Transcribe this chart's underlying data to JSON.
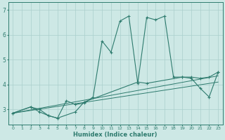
{
  "xlabel": "Humidex (Indice chaleur)",
  "bg_color": "#cde8e5",
  "line_color": "#2e7b6e",
  "grid_color": "#aacfcc",
  "xlim": [
    -0.5,
    23.5
  ],
  "ylim": [
    2.4,
    7.3
  ],
  "xticks": [
    0,
    1,
    2,
    3,
    4,
    5,
    6,
    7,
    8,
    9,
    10,
    11,
    12,
    13,
    14,
    15,
    16,
    17,
    18,
    19,
    20,
    21,
    22,
    23
  ],
  "yticks": [
    3,
    4,
    5,
    6,
    7
  ],
  "series": [
    [
      [
        0,
        2.85
      ],
      [
        2,
        3.1
      ],
      [
        3,
        3.0
      ],
      [
        4,
        2.75
      ],
      [
        5,
        2.65
      ],
      [
        6,
        3.35
      ],
      [
        7,
        3.2
      ],
      [
        8,
        3.25
      ],
      [
        9,
        3.5
      ],
      [
        10,
        5.75
      ],
      [
        11,
        5.3
      ],
      [
        12,
        6.55
      ],
      [
        13,
        6.75
      ],
      [
        14,
        4.05
      ],
      [
        15,
        6.7
      ],
      [
        16,
        6.6
      ],
      [
        17,
        6.75
      ],
      [
        18,
        4.3
      ],
      [
        19,
        4.3
      ],
      [
        20,
        4.25
      ],
      [
        21,
        3.85
      ],
      [
        22,
        3.5
      ],
      [
        23,
        4.5
      ]
    ],
    [
      [
        0,
        2.85
      ],
      [
        2,
        3.1
      ],
      [
        3,
        2.9
      ],
      [
        4,
        2.75
      ],
      [
        5,
        2.65
      ],
      [
        7,
        2.9
      ],
      [
        8,
        3.3
      ],
      [
        14,
        4.1
      ],
      [
        15,
        4.05
      ],
      [
        19,
        4.3
      ],
      [
        20,
        4.3
      ],
      [
        21,
        4.25
      ],
      [
        22,
        4.3
      ],
      [
        23,
        4.5
      ]
    ],
    [
      [
        0,
        2.85
      ],
      [
        23,
        4.35
      ]
    ],
    [
      [
        0,
        2.85
      ],
      [
        23,
        4.1
      ]
    ]
  ]
}
